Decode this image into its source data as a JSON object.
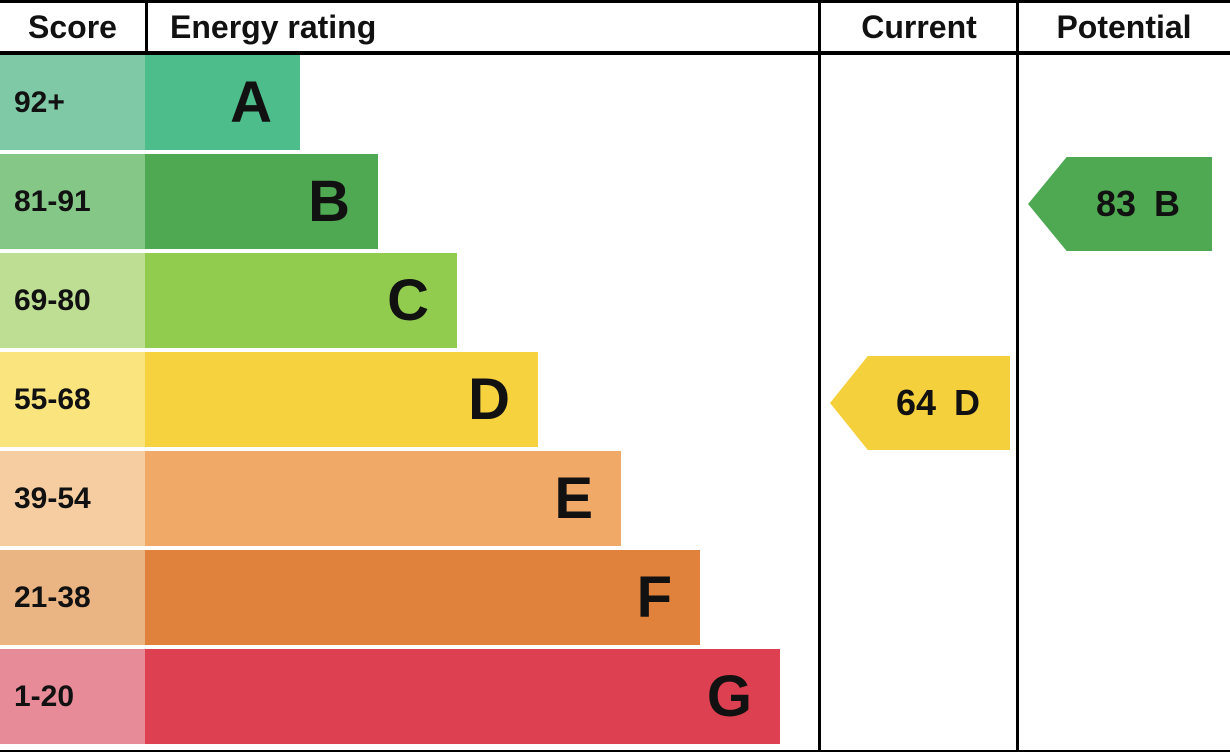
{
  "header": {
    "score": "Score",
    "energy_rating": "Energy rating",
    "current": "Current",
    "potential": "Potential"
  },
  "chart_data": {
    "type": "bar",
    "description": "EPC energy efficiency rating chart with score bands A-G, plus current and potential rating arrows",
    "bands": [
      {
        "score": "92+",
        "letter": "A",
        "color": "#4dbd8b",
        "tint": "#80c9a7",
        "relative_bar_length": 0.23
      },
      {
        "score": "81-91",
        "letter": "B",
        "color": "#4fa952",
        "tint": "#85c786",
        "relative_bar_length": 0.345
      },
      {
        "score": "69-80",
        "letter": "C",
        "color": "#92cc4f",
        "tint": "#bedf93",
        "relative_bar_length": 0.46
      },
      {
        "score": "55-68",
        "letter": "D",
        "color": "#f6d23e",
        "tint": "#f9e47e",
        "relative_bar_length": 0.58
      },
      {
        "score": "39-54",
        "letter": "E",
        "color": "#f0a967",
        "tint": "#f5cda1",
        "relative_bar_length": 0.705
      },
      {
        "score": "21-38",
        "letter": "F",
        "color": "#e0813c",
        "tint": "#eab483",
        "relative_bar_length": 0.82
      },
      {
        "score": "1-20",
        "letter": "G",
        "color": "#dd4050",
        "tint": "#e78b99",
        "relative_bar_length": 0.94
      }
    ],
    "current": {
      "value": "64",
      "letter": "D",
      "band_color": "#f3d03c"
    },
    "potential": {
      "value": "83",
      "letter": "B",
      "band_color": "#4fa952"
    }
  }
}
